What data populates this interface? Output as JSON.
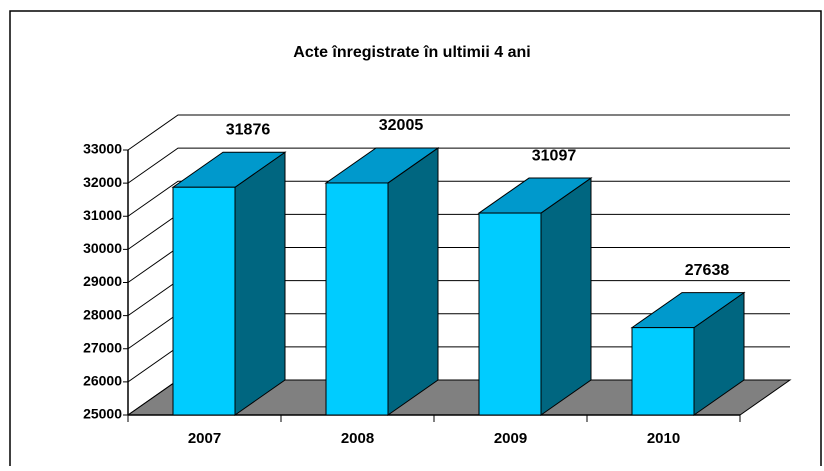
{
  "chart_data": {
    "type": "bar",
    "title": "Acte înregistrate în ultimii 4 ani",
    "categories": [
      "2007",
      "2008",
      "2009",
      "2010"
    ],
    "values": [
      31876,
      32005,
      31097,
      27638
    ],
    "color": "#00ccff",
    "top_color": "#0099cc",
    "side_color": "#006680",
    "floor_color": "#808080",
    "ylim": [
      25000,
      33000
    ],
    "yticks": [
      25000,
      26000,
      27000,
      28000,
      29000,
      30000,
      31000,
      32000,
      33000
    ],
    "grid": true
  }
}
